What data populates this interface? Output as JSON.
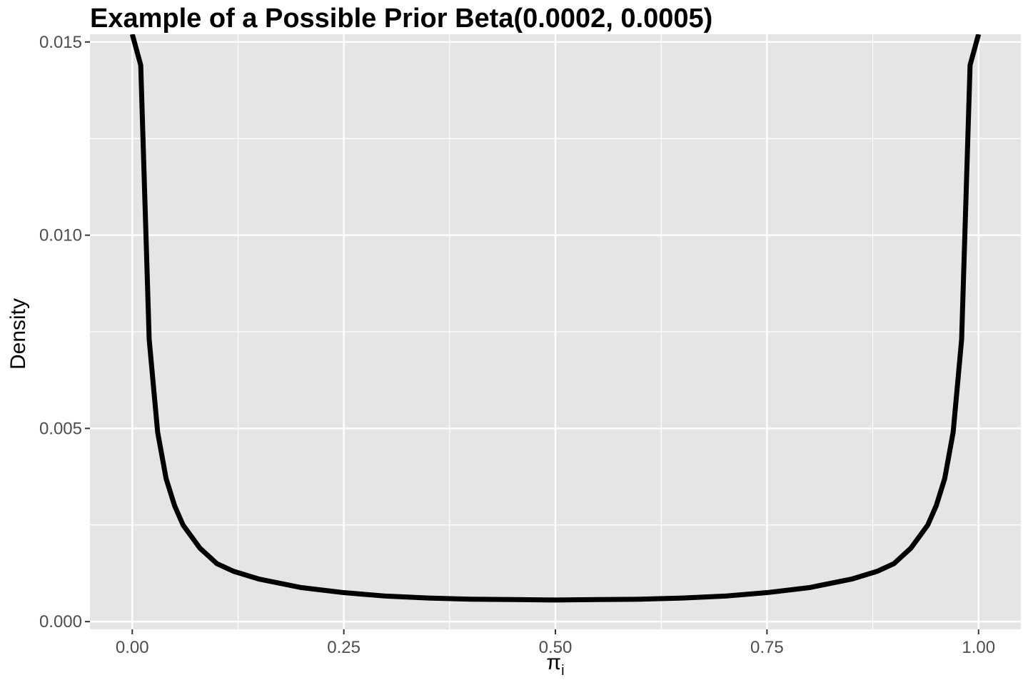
{
  "chart_data": {
    "type": "line",
    "title": "Example of a Possible Prior Beta(0.0002, 0.0005)",
    "xlabel": {
      "base": "π",
      "subscript": "i"
    },
    "ylabel": "Density",
    "xlim": [
      -0.05,
      1.05
    ],
    "ylim": [
      -0.0002,
      0.0152
    ],
    "x_ticks": [
      0.0,
      0.25,
      0.5,
      0.75,
      1.0
    ],
    "x_tick_labels": [
      "0.00",
      "0.25",
      "0.50",
      "0.75",
      "1.00"
    ],
    "y_ticks": [
      0.0,
      0.005,
      0.01,
      0.015
    ],
    "y_tick_labels": [
      "0.000",
      "0.005",
      "0.010",
      "0.015"
    ],
    "grid": true,
    "legend": "none",
    "colors": {
      "panel": "#e5e5e5",
      "grid": "#ffffff",
      "line": "#000000"
    },
    "series": [
      {
        "x": [
          0.0,
          0.01,
          0.02,
          0.03,
          0.04,
          0.05,
          0.06,
          0.07,
          0.08,
          0.09,
          0.1,
          0.12,
          0.15,
          0.2,
          0.25,
          0.3,
          0.35,
          0.4,
          0.45,
          0.5,
          0.55,
          0.6,
          0.65,
          0.7,
          0.75,
          0.8,
          0.85,
          0.88,
          0.9,
          0.91,
          0.92,
          0.93,
          0.94,
          0.95,
          0.96,
          0.97,
          0.98,
          0.99,
          1.0
        ],
        "y": [
          0.0152,
          0.0144,
          0.0073,
          0.0049,
          0.0037,
          0.003,
          0.0025,
          0.0022,
          0.0019,
          0.0017,
          0.0015,
          0.0013,
          0.0011,
          0.00088,
          0.00075,
          0.00066,
          0.00061,
          0.00058,
          0.00057,
          0.00056,
          0.00057,
          0.00058,
          0.00061,
          0.00066,
          0.00075,
          0.00088,
          0.0011,
          0.0013,
          0.0015,
          0.0017,
          0.0019,
          0.0022,
          0.0025,
          0.003,
          0.0037,
          0.0049,
          0.0073,
          0.0144,
          0.0152
        ]
      }
    ]
  }
}
